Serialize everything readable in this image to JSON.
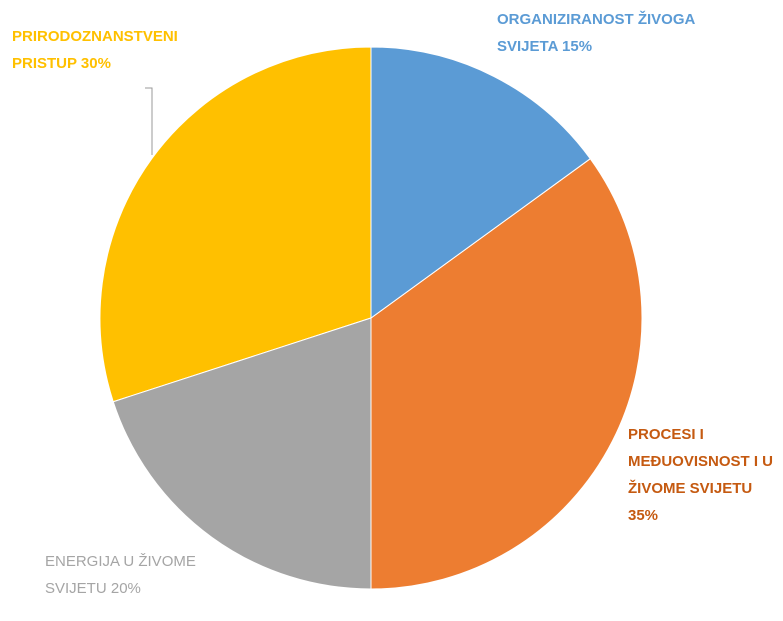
{
  "chart_data": {
    "type": "pie",
    "categories": [
      "ORGANIZIRANOST ŽIVOGA SVIJETA",
      "PROCESI I MEĐUOVISNOST I U ŽIVOME SVIJETU",
      "ENERGIJA U ŽIVOME SVIJETU",
      "PRIRODOZNANSTVENI PRISTUP"
    ],
    "values": [
      15,
      35,
      20,
      30
    ],
    "value_labels": [
      "15%",
      "35%",
      "20%",
      "30%"
    ],
    "colors": [
      "#5b9bd5",
      "#ed7d31",
      "#a5a5a5",
      "#ffc000"
    ]
  }
}
